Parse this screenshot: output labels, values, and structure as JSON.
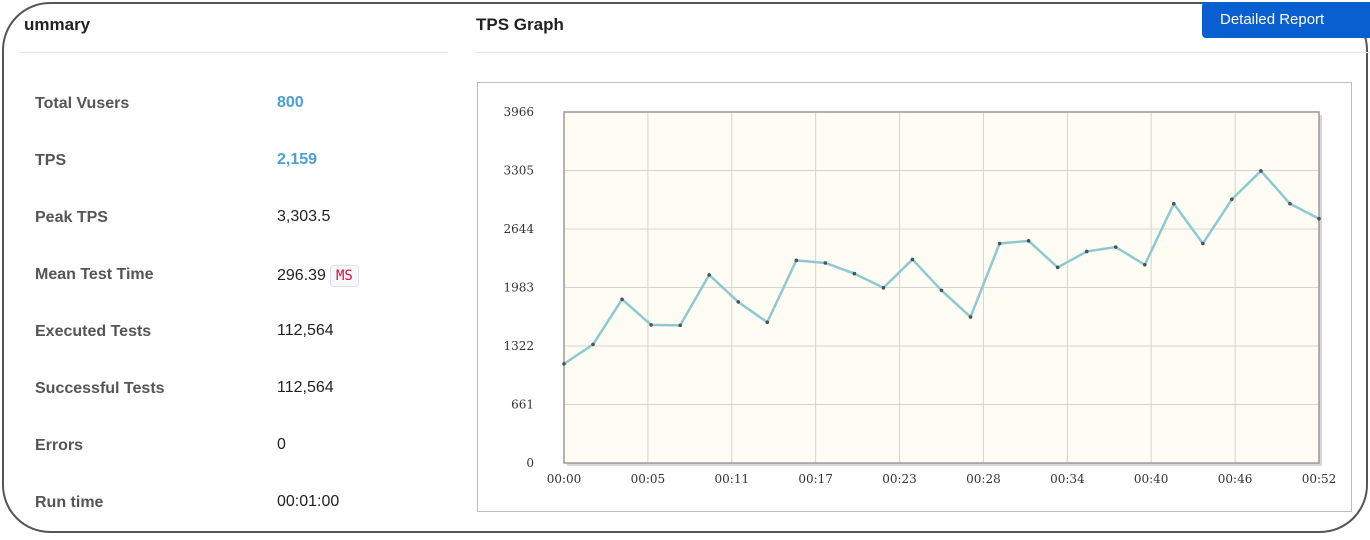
{
  "summary": {
    "title": "ummary",
    "rows": [
      {
        "label": "Total Vusers",
        "value": "800",
        "link": true
      },
      {
        "label": "TPS",
        "value": "2,159",
        "link": true
      },
      {
        "label": "Peak TPS",
        "value": "3,303.5",
        "link": false
      },
      {
        "label": "Mean Test Time",
        "value": "296.39",
        "unit": "MS",
        "link": false
      },
      {
        "label": "Executed Tests",
        "value": "112,564",
        "link": false
      },
      {
        "label": "Successful Tests",
        "value": "112,564",
        "link": false
      },
      {
        "label": "Errors",
        "value": "0",
        "link": false
      },
      {
        "label": "Run time",
        "value": "00:01:00",
        "link": false
      }
    ]
  },
  "graph": {
    "title": "TPS Graph",
    "report_button": "Detailed Report"
  },
  "colors": {
    "link": "#4a9fd6",
    "button": "#0a5fd0",
    "series": "#8ec9d3",
    "plot_bg": "#fefcf3"
  },
  "chart_data": {
    "type": "line",
    "title": "",
    "xlabel": "",
    "ylabel": "",
    "y_ticks": [
      "0",
      "661",
      "1322",
      "1983",
      "2644",
      "3305",
      "3966"
    ],
    "ylim": [
      0,
      3966
    ],
    "x_ticks": [
      "00:00",
      "00:05",
      "00:11",
      "00:17",
      "00:23",
      "00:28",
      "00:34",
      "00:40",
      "00:46",
      "00:52"
    ],
    "x_tick_positions": [
      0,
      5.78,
      11.56,
      17.33,
      23.11,
      28.89,
      34.67,
      40.44,
      46.22,
      52
    ],
    "xlim": [
      0,
      52
    ],
    "grid": true,
    "series": [
      {
        "x": [
          0,
          2,
          4,
          6,
          8,
          10,
          12,
          14,
          16,
          18,
          20,
          22,
          24,
          26,
          28,
          30,
          32,
          34,
          36,
          38,
          40,
          42,
          44,
          46,
          48,
          50,
          52
        ],
        "values": [
          1120,
          1340,
          1850,
          1560,
          1555,
          2125,
          1820,
          1590,
          2290,
          2260,
          2140,
          1980,
          2300,
          1950,
          1650,
          2480,
          2510,
          2210,
          2390,
          2440,
          2240,
          2930,
          2480,
          2980,
          3300,
          2930,
          2760
        ]
      }
    ]
  }
}
